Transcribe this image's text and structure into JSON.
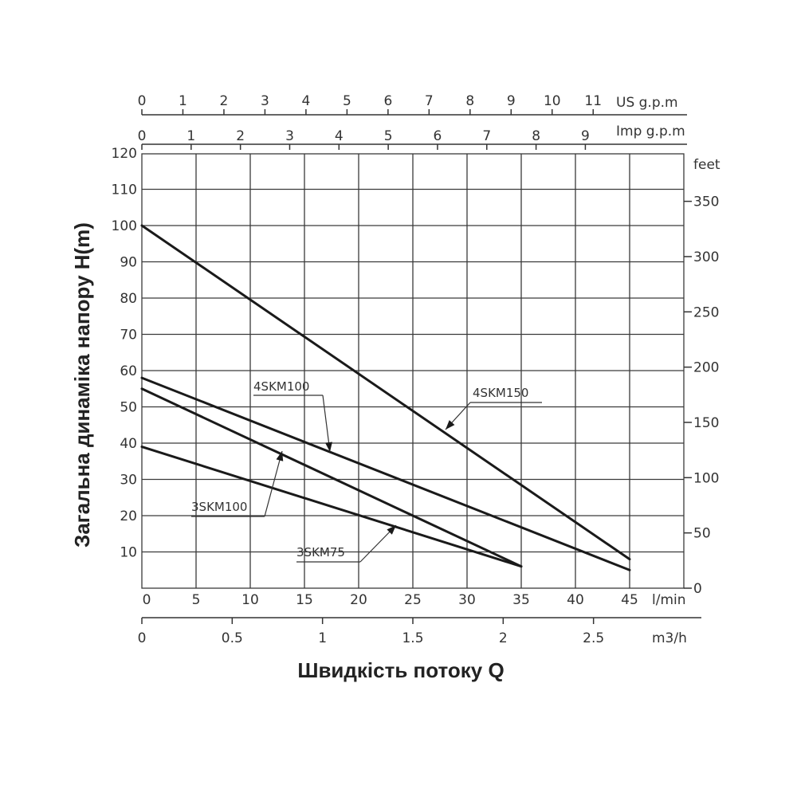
{
  "chart_data": {
    "type": "line",
    "title": "",
    "xlabel": "Швидкість потоку Q",
    "ylabel": "Загальна динаміка напору H(m)",
    "x_unit": "l/min",
    "xlim": [
      0,
      50
    ],
    "ylim": [
      0,
      120
    ],
    "x_ticks": [
      "0",
      "5",
      "10",
      "15",
      "20",
      "25",
      "30",
      "35",
      "40",
      "45"
    ],
    "y_ticks": [
      "10",
      "20",
      "30",
      "40",
      "50",
      "60",
      "70",
      "80",
      "90",
      "100",
      "110",
      "120"
    ],
    "grid": true,
    "secondary_axes": {
      "us_gpm": {
        "unit": "US g.p.m",
        "ticks": [
          "0",
          "1",
          "2",
          "3",
          "4",
          "5",
          "6",
          "7",
          "8",
          "9",
          "10",
          "11"
        ]
      },
      "imp_gpm": {
        "unit": "Imp g.p.m",
        "ticks": [
          "0",
          "1",
          "2",
          "3",
          "4",
          "5",
          "6",
          "7",
          "8",
          "9"
        ]
      },
      "m3h": {
        "unit": "m3/h",
        "ticks": [
          "0",
          "0.5",
          "1",
          "1.5",
          "2",
          "2.5"
        ]
      },
      "feet": {
        "unit": "feet",
        "ticks": [
          "0",
          "50",
          "100",
          "150",
          "200",
          "250",
          "300",
          "350"
        ]
      }
    },
    "series": [
      {
        "name": "4SKM150",
        "x": [
          0,
          45
        ],
        "y": [
          100,
          8
        ]
      },
      {
        "name": "4SKM100",
        "x": [
          0,
          45
        ],
        "y": [
          58,
          5
        ]
      },
      {
        "name": "3SKM100",
        "x": [
          0,
          35
        ],
        "y": [
          55,
          6
        ]
      },
      {
        "name": "3SKM75",
        "x": [
          0,
          35
        ],
        "y": [
          39,
          6
        ]
      }
    ]
  }
}
